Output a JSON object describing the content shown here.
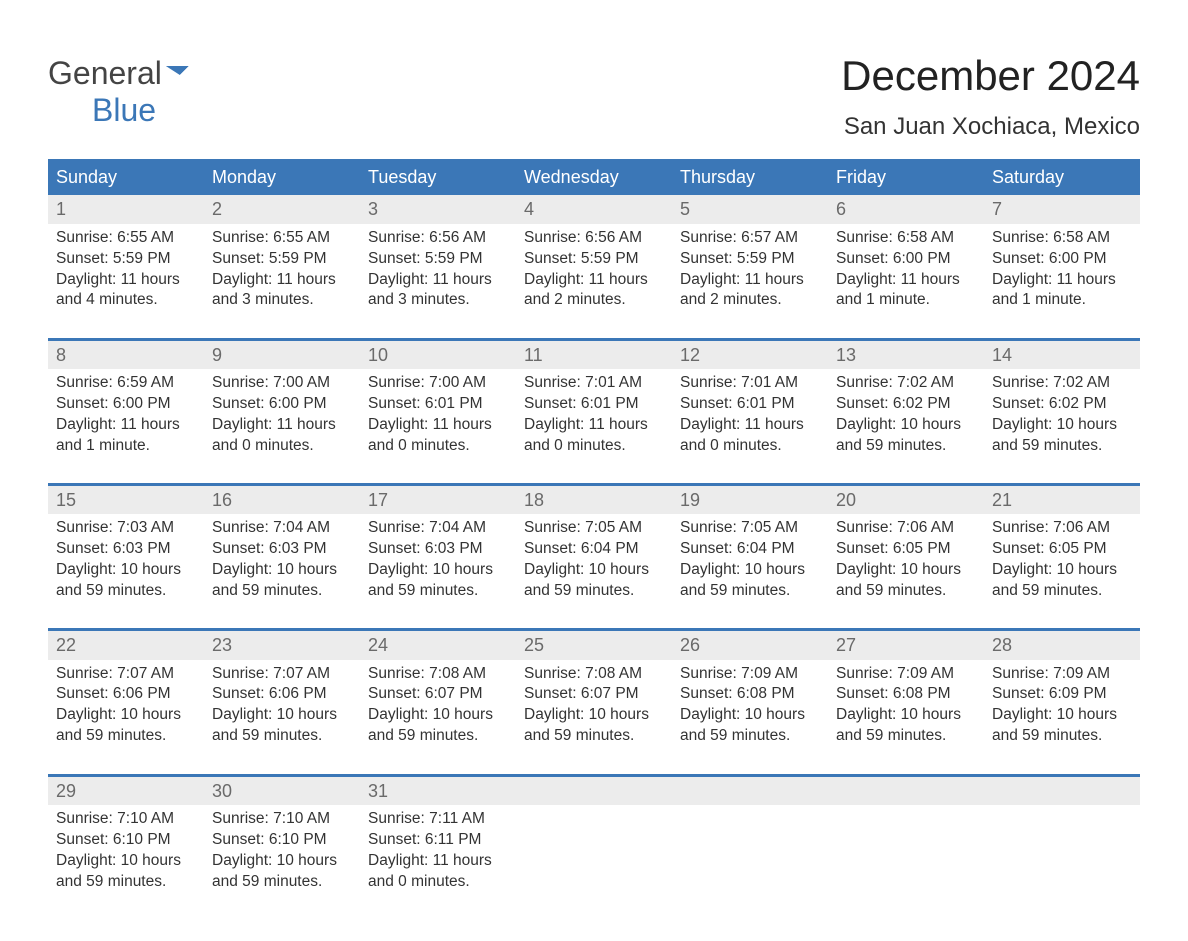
{
  "brand": {
    "line1": "General",
    "line2": "Blue"
  },
  "header": {
    "month": "December 2024",
    "location": "San Juan Xochiaca, Mexico"
  },
  "colors": {
    "brand_blue": "#3b77b7",
    "row_grey": "#ececec",
    "text": "#333333",
    "muted": "#6a6a6a",
    "background": "#ffffff"
  },
  "typography": {
    "title_fontsize": 42,
    "location_fontsize": 24,
    "dow_fontsize": 18,
    "daynum_fontsize": 18,
    "body_fontsize": 15.5,
    "logo_fontsize": 32
  },
  "calendar": {
    "type": "table",
    "columns": [
      "Sunday",
      "Monday",
      "Tuesday",
      "Wednesday",
      "Thursday",
      "Friday",
      "Saturday"
    ],
    "weeks": [
      [
        {
          "n": 1,
          "sunrise": "6:55 AM",
          "sunset": "5:59 PM",
          "daylight": "11 hours and 4 minutes."
        },
        {
          "n": 2,
          "sunrise": "6:55 AM",
          "sunset": "5:59 PM",
          "daylight": "11 hours and 3 minutes."
        },
        {
          "n": 3,
          "sunrise": "6:56 AM",
          "sunset": "5:59 PM",
          "daylight": "11 hours and 3 minutes."
        },
        {
          "n": 4,
          "sunrise": "6:56 AM",
          "sunset": "5:59 PM",
          "daylight": "11 hours and 2 minutes."
        },
        {
          "n": 5,
          "sunrise": "6:57 AM",
          "sunset": "5:59 PM",
          "daylight": "11 hours and 2 minutes."
        },
        {
          "n": 6,
          "sunrise": "6:58 AM",
          "sunset": "6:00 PM",
          "daylight": "11 hours and 1 minute."
        },
        {
          "n": 7,
          "sunrise": "6:58 AM",
          "sunset": "6:00 PM",
          "daylight": "11 hours and 1 minute."
        }
      ],
      [
        {
          "n": 8,
          "sunrise": "6:59 AM",
          "sunset": "6:00 PM",
          "daylight": "11 hours and 1 minute."
        },
        {
          "n": 9,
          "sunrise": "7:00 AM",
          "sunset": "6:00 PM",
          "daylight": "11 hours and 0 minutes."
        },
        {
          "n": 10,
          "sunrise": "7:00 AM",
          "sunset": "6:01 PM",
          "daylight": "11 hours and 0 minutes."
        },
        {
          "n": 11,
          "sunrise": "7:01 AM",
          "sunset": "6:01 PM",
          "daylight": "11 hours and 0 minutes."
        },
        {
          "n": 12,
          "sunrise": "7:01 AM",
          "sunset": "6:01 PM",
          "daylight": "11 hours and 0 minutes."
        },
        {
          "n": 13,
          "sunrise": "7:02 AM",
          "sunset": "6:02 PM",
          "daylight": "10 hours and 59 minutes."
        },
        {
          "n": 14,
          "sunrise": "7:02 AM",
          "sunset": "6:02 PM",
          "daylight": "10 hours and 59 minutes."
        }
      ],
      [
        {
          "n": 15,
          "sunrise": "7:03 AM",
          "sunset": "6:03 PM",
          "daylight": "10 hours and 59 minutes."
        },
        {
          "n": 16,
          "sunrise": "7:04 AM",
          "sunset": "6:03 PM",
          "daylight": "10 hours and 59 minutes."
        },
        {
          "n": 17,
          "sunrise": "7:04 AM",
          "sunset": "6:03 PM",
          "daylight": "10 hours and 59 minutes."
        },
        {
          "n": 18,
          "sunrise": "7:05 AM",
          "sunset": "6:04 PM",
          "daylight": "10 hours and 59 minutes."
        },
        {
          "n": 19,
          "sunrise": "7:05 AM",
          "sunset": "6:04 PM",
          "daylight": "10 hours and 59 minutes."
        },
        {
          "n": 20,
          "sunrise": "7:06 AM",
          "sunset": "6:05 PM",
          "daylight": "10 hours and 59 minutes."
        },
        {
          "n": 21,
          "sunrise": "7:06 AM",
          "sunset": "6:05 PM",
          "daylight": "10 hours and 59 minutes."
        }
      ],
      [
        {
          "n": 22,
          "sunrise": "7:07 AM",
          "sunset": "6:06 PM",
          "daylight": "10 hours and 59 minutes."
        },
        {
          "n": 23,
          "sunrise": "7:07 AM",
          "sunset": "6:06 PM",
          "daylight": "10 hours and 59 minutes."
        },
        {
          "n": 24,
          "sunrise": "7:08 AM",
          "sunset": "6:07 PM",
          "daylight": "10 hours and 59 minutes."
        },
        {
          "n": 25,
          "sunrise": "7:08 AM",
          "sunset": "6:07 PM",
          "daylight": "10 hours and 59 minutes."
        },
        {
          "n": 26,
          "sunrise": "7:09 AM",
          "sunset": "6:08 PM",
          "daylight": "10 hours and 59 minutes."
        },
        {
          "n": 27,
          "sunrise": "7:09 AM",
          "sunset": "6:08 PM",
          "daylight": "10 hours and 59 minutes."
        },
        {
          "n": 28,
          "sunrise": "7:09 AM",
          "sunset": "6:09 PM",
          "daylight": "10 hours and 59 minutes."
        }
      ],
      [
        {
          "n": 29,
          "sunrise": "7:10 AM",
          "sunset": "6:10 PM",
          "daylight": "10 hours and 59 minutes."
        },
        {
          "n": 30,
          "sunrise": "7:10 AM",
          "sunset": "6:10 PM",
          "daylight": "10 hours and 59 minutes."
        },
        {
          "n": 31,
          "sunrise": "7:11 AM",
          "sunset": "6:11 PM",
          "daylight": "11 hours and 0 minutes."
        },
        null,
        null,
        null,
        null
      ]
    ]
  },
  "labels": {
    "sunrise_prefix": "Sunrise: ",
    "sunset_prefix": "Sunset: ",
    "daylight_prefix": "Daylight: "
  }
}
